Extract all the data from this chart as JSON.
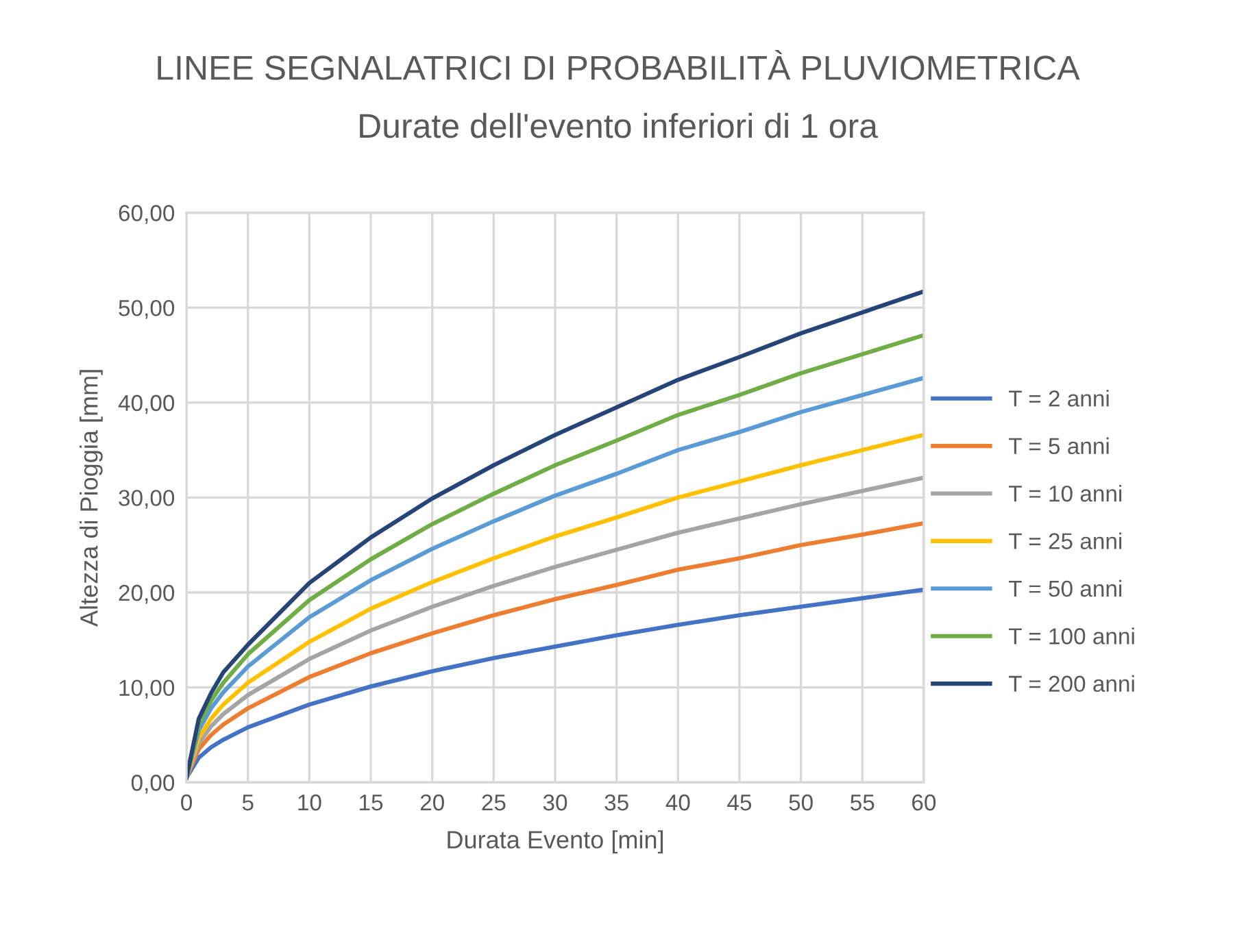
{
  "chart_data": {
    "type": "line",
    "title": "LINEE SEGNALATRICI DI PROBABILITÀ PLUVIOMETRICA",
    "subtitle": "Durate dell'evento inferiori di 1 ora",
    "xlabel": "Durata Evento [min]",
    "ylabel": "Altezza di Pioggia [mm]",
    "x": [
      0,
      1,
      2,
      3,
      5,
      10,
      15,
      20,
      25,
      30,
      35,
      40,
      45,
      50,
      55,
      60
    ],
    "series": [
      {
        "name": "T = 2 anni",
        "color": "#4472c4",
        "values": [
          0.5,
          2.6,
          3.7,
          4.5,
          5.8,
          8.2,
          10.1,
          11.7,
          13.1,
          14.3,
          15.5,
          16.6,
          17.6,
          18.5,
          19.4,
          20.3
        ]
      },
      {
        "name": "T = 5 anni",
        "color": "#ed7d31",
        "values": [
          0.5,
          3.5,
          5.0,
          6.1,
          7.8,
          11.1,
          13.6,
          15.7,
          17.6,
          19.3,
          20.8,
          22.4,
          23.6,
          25.0,
          26.1,
          27.3
        ]
      },
      {
        "name": "T = 10 anni",
        "color": "#a5a5a5",
        "values": [
          0.5,
          4.1,
          5.9,
          7.2,
          9.2,
          13.0,
          16.0,
          18.5,
          20.7,
          22.7,
          24.5,
          26.3,
          27.8,
          29.3,
          30.7,
          32.1
        ]
      },
      {
        "name": "T = 25 anni",
        "color": "#ffc000",
        "values": [
          0.5,
          4.7,
          6.7,
          8.2,
          10.5,
          14.8,
          18.3,
          21.1,
          23.6,
          25.9,
          27.9,
          30.0,
          31.7,
          33.4,
          35.0,
          36.6
        ]
      },
      {
        "name": "T = 50 anni",
        "color": "#5b9bd5",
        "values": [
          0.5,
          5.5,
          7.8,
          9.5,
          12.2,
          17.4,
          21.3,
          24.6,
          27.5,
          30.2,
          32.5,
          35.0,
          36.9,
          39.0,
          40.8,
          42.6
        ]
      },
      {
        "name": "T = 100 anni",
        "color": "#70ad47",
        "values": [
          0.5,
          6.1,
          8.6,
          10.5,
          13.5,
          19.2,
          23.5,
          27.2,
          30.4,
          33.4,
          36.0,
          38.7,
          40.8,
          43.1,
          45.1,
          47.1
        ]
      },
      {
        "name": "T = 200 anni",
        "color": "#264478",
        "values": [
          0.5,
          6.7,
          9.4,
          11.6,
          14.5,
          21.0,
          25.8,
          29.9,
          33.4,
          36.6,
          39.5,
          42.4,
          44.8,
          47.3,
          49.5,
          51.7
        ]
      }
    ],
    "xlim": [
      0,
      60
    ],
    "xticks": [
      0,
      5,
      10,
      15,
      20,
      25,
      30,
      35,
      40,
      45,
      50,
      55,
      60
    ],
    "ylim": [
      0,
      60
    ],
    "yticks": [
      {
        "value": 0,
        "label": "0,00"
      },
      {
        "value": 10,
        "label": "10,00"
      },
      {
        "value": 20,
        "label": "20,00"
      },
      {
        "value": 30,
        "label": "30,00"
      },
      {
        "value": 40,
        "label": "40,00"
      },
      {
        "value": 50,
        "label": "50,00"
      },
      {
        "value": 60,
        "label": "60,00"
      }
    ],
    "grid": true,
    "legend": "right",
    "marker": "none",
    "line_style": "solid"
  }
}
